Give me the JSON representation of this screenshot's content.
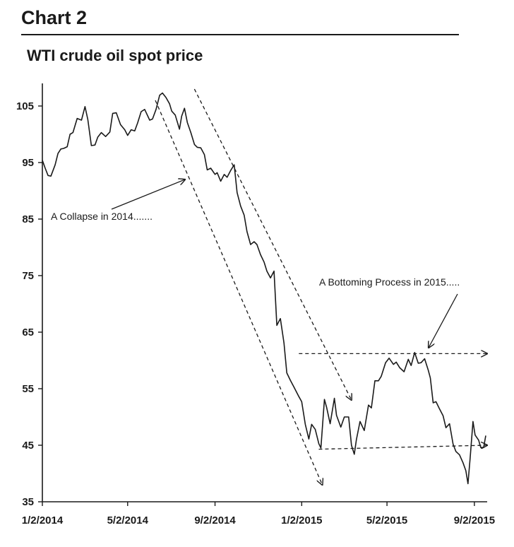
{
  "figure": {
    "heading": "Chart 2"
  },
  "chart_data": {
    "type": "line",
    "title": "WTI crude oil spot price",
    "xlabel": "",
    "ylabel": "",
    "ylim": [
      35,
      109
    ],
    "xlim": [
      "2014-01-02",
      "2015-09-20"
    ],
    "grid": false,
    "y_ticks": [
      35,
      45,
      55,
      65,
      75,
      85,
      95,
      105
    ],
    "x_ticks": [
      "1/2/2014",
      "5/2/2014",
      "9/2/2014",
      "1/2/2015",
      "5/2/2015",
      "9/2/2015"
    ],
    "series": [
      {
        "points": [
          [
            "2014-01-02",
            95.4
          ],
          [
            "2014-01-06",
            94.0
          ],
          [
            "2014-01-10",
            92.7
          ],
          [
            "2014-01-14",
            92.6
          ],
          [
            "2014-01-20",
            94.6
          ],
          [
            "2014-01-24",
            96.6
          ],
          [
            "2014-01-28",
            97.4
          ],
          [
            "2014-02-01",
            97.5
          ],
          [
            "2014-02-06",
            97.8
          ],
          [
            "2014-02-10",
            100.0
          ],
          [
            "2014-02-14",
            100.3
          ],
          [
            "2014-02-20",
            102.8
          ],
          [
            "2014-02-26",
            102.5
          ],
          [
            "2014-03-03",
            104.9
          ],
          [
            "2014-03-07",
            102.6
          ],
          [
            "2014-03-12",
            98.0
          ],
          [
            "2014-03-17",
            98.1
          ],
          [
            "2014-03-21",
            99.5
          ],
          [
            "2014-03-26",
            100.3
          ],
          [
            "2014-04-01",
            99.6
          ],
          [
            "2014-04-07",
            100.4
          ],
          [
            "2014-04-11",
            103.7
          ],
          [
            "2014-04-16",
            103.8
          ],
          [
            "2014-04-22",
            101.7
          ],
          [
            "2014-04-28",
            100.8
          ],
          [
            "2014-05-02",
            99.8
          ],
          [
            "2014-05-07",
            100.8
          ],
          [
            "2014-05-12",
            100.6
          ],
          [
            "2014-05-16",
            102.0
          ],
          [
            "2014-05-21",
            104.0
          ],
          [
            "2014-05-26",
            104.4
          ],
          [
            "2014-06-02",
            102.5
          ],
          [
            "2014-06-06",
            102.7
          ],
          [
            "2014-06-11",
            104.4
          ],
          [
            "2014-06-16",
            106.9
          ],
          [
            "2014-06-20",
            107.3
          ],
          [
            "2014-06-25",
            106.5
          ],
          [
            "2014-06-30",
            105.4
          ],
          [
            "2014-07-03",
            104.1
          ],
          [
            "2014-07-08",
            103.4
          ],
          [
            "2014-07-14",
            100.9
          ],
          [
            "2014-07-17",
            103.2
          ],
          [
            "2014-07-21",
            104.6
          ],
          [
            "2014-07-25",
            102.1
          ],
          [
            "2014-07-30",
            100.3
          ],
          [
            "2014-08-04",
            98.2
          ],
          [
            "2014-08-08",
            97.7
          ],
          [
            "2014-08-13",
            97.6
          ],
          [
            "2014-08-18",
            96.4
          ],
          [
            "2014-08-22",
            93.7
          ],
          [
            "2014-08-27",
            94.0
          ],
          [
            "2014-09-02",
            92.9
          ],
          [
            "2014-09-05",
            93.2
          ],
          [
            "2014-09-10",
            91.7
          ],
          [
            "2014-09-15",
            92.9
          ],
          [
            "2014-09-19",
            92.4
          ],
          [
            "2014-09-24",
            93.6
          ],
          [
            "2014-09-29",
            94.6
          ],
          [
            "2014-10-03",
            89.7
          ],
          [
            "2014-10-08",
            87.3
          ],
          [
            "2014-10-13",
            85.7
          ],
          [
            "2014-10-17",
            82.8
          ],
          [
            "2014-10-22",
            80.5
          ],
          [
            "2014-10-27",
            81.0
          ],
          [
            "2014-10-31",
            80.5
          ],
          [
            "2014-11-05",
            78.7
          ],
          [
            "2014-11-10",
            77.4
          ],
          [
            "2014-11-14",
            75.8
          ],
          [
            "2014-11-19",
            74.6
          ],
          [
            "2014-11-24",
            75.8
          ],
          [
            "2014-11-28",
            66.2
          ],
          [
            "2014-12-03",
            67.4
          ],
          [
            "2014-12-08",
            63.1
          ],
          [
            "2014-12-12",
            57.8
          ],
          [
            "2014-12-17",
            56.5
          ],
          [
            "2014-12-22",
            55.3
          ],
          [
            "2014-12-29",
            53.6
          ],
          [
            "2015-01-02",
            52.7
          ],
          [
            "2015-01-07",
            48.7
          ],
          [
            "2015-01-12",
            46.1
          ],
          [
            "2015-01-16",
            48.7
          ],
          [
            "2015-01-21",
            47.8
          ],
          [
            "2015-01-26",
            45.3
          ],
          [
            "2015-01-29",
            44.5
          ],
          [
            "2015-02-03",
            53.1
          ],
          [
            "2015-02-06",
            51.7
          ],
          [
            "2015-02-11",
            48.8
          ],
          [
            "2015-02-17",
            53.3
          ],
          [
            "2015-02-20",
            50.3
          ],
          [
            "2015-02-26",
            48.2
          ],
          [
            "2015-03-03",
            50.0
          ],
          [
            "2015-03-09",
            50.0
          ],
          [
            "2015-03-13",
            45.0
          ],
          [
            "2015-03-17",
            43.4
          ],
          [
            "2015-03-20",
            46.0
          ],
          [
            "2015-03-25",
            49.2
          ],
          [
            "2015-03-31",
            47.6
          ],
          [
            "2015-04-06",
            52.1
          ],
          [
            "2015-04-10",
            51.6
          ],
          [
            "2015-04-15",
            56.4
          ],
          [
            "2015-04-20",
            56.4
          ],
          [
            "2015-04-24",
            57.2
          ],
          [
            "2015-04-30",
            59.6
          ],
          [
            "2015-05-05",
            60.4
          ],
          [
            "2015-05-11",
            59.3
          ],
          [
            "2015-05-15",
            59.7
          ],
          [
            "2015-05-20",
            58.7
          ],
          [
            "2015-05-26",
            58.0
          ],
          [
            "2015-06-01",
            60.2
          ],
          [
            "2015-06-05",
            59.1
          ],
          [
            "2015-06-10",
            61.4
          ],
          [
            "2015-06-15",
            59.5
          ],
          [
            "2015-06-19",
            59.6
          ],
          [
            "2015-06-24",
            60.3
          ],
          [
            "2015-06-29",
            58.3
          ],
          [
            "2015-07-02",
            56.9
          ],
          [
            "2015-07-06",
            52.5
          ],
          [
            "2015-07-10",
            52.7
          ],
          [
            "2015-07-15",
            51.4
          ],
          [
            "2015-07-20",
            50.2
          ],
          [
            "2015-07-24",
            48.1
          ],
          [
            "2015-07-29",
            48.8
          ],
          [
            "2015-08-03",
            45.2
          ],
          [
            "2015-08-07",
            43.9
          ],
          [
            "2015-08-12",
            43.3
          ],
          [
            "2015-08-17",
            41.9
          ],
          [
            "2015-08-21",
            40.5
          ],
          [
            "2015-08-24",
            38.2
          ],
          [
            "2015-08-27",
            42.6
          ],
          [
            "2015-08-31",
            49.2
          ],
          [
            "2015-09-03",
            46.8
          ],
          [
            "2015-09-08",
            45.9
          ],
          [
            "2015-09-11",
            44.6
          ],
          [
            "2015-09-15",
            44.6
          ],
          [
            "2015-09-18",
            46.7
          ]
        ]
      }
    ],
    "annotations": [
      {
        "text": "A Collapse in 2014.......",
        "position": "middle-left"
      },
      {
        "text": "A Bottoming Process in 2015.....",
        "position": "middle-right"
      }
    ],
    "trend_lines": [
      {
        "style": "dashed",
        "from": [
          "2014-06-10",
          106
        ],
        "to": [
          "2015-01-31",
          38
        ]
      },
      {
        "style": "dashed",
        "from": [
          "2014-08-04",
          108
        ],
        "to": [
          "2015-03-13",
          53
        ]
      },
      {
        "style": "dashed",
        "from": [
          "2014-12-29",
          61.2
        ],
        "to": [
          "2015-09-20",
          61.2
        ]
      },
      {
        "style": "dashed",
        "from": [
          "2015-01-26",
          44.3
        ],
        "to": [
          "2015-09-20",
          45.0
        ]
      }
    ],
    "colors": {
      "line": "#1a1a1a",
      "background": "#ffffff"
    }
  }
}
